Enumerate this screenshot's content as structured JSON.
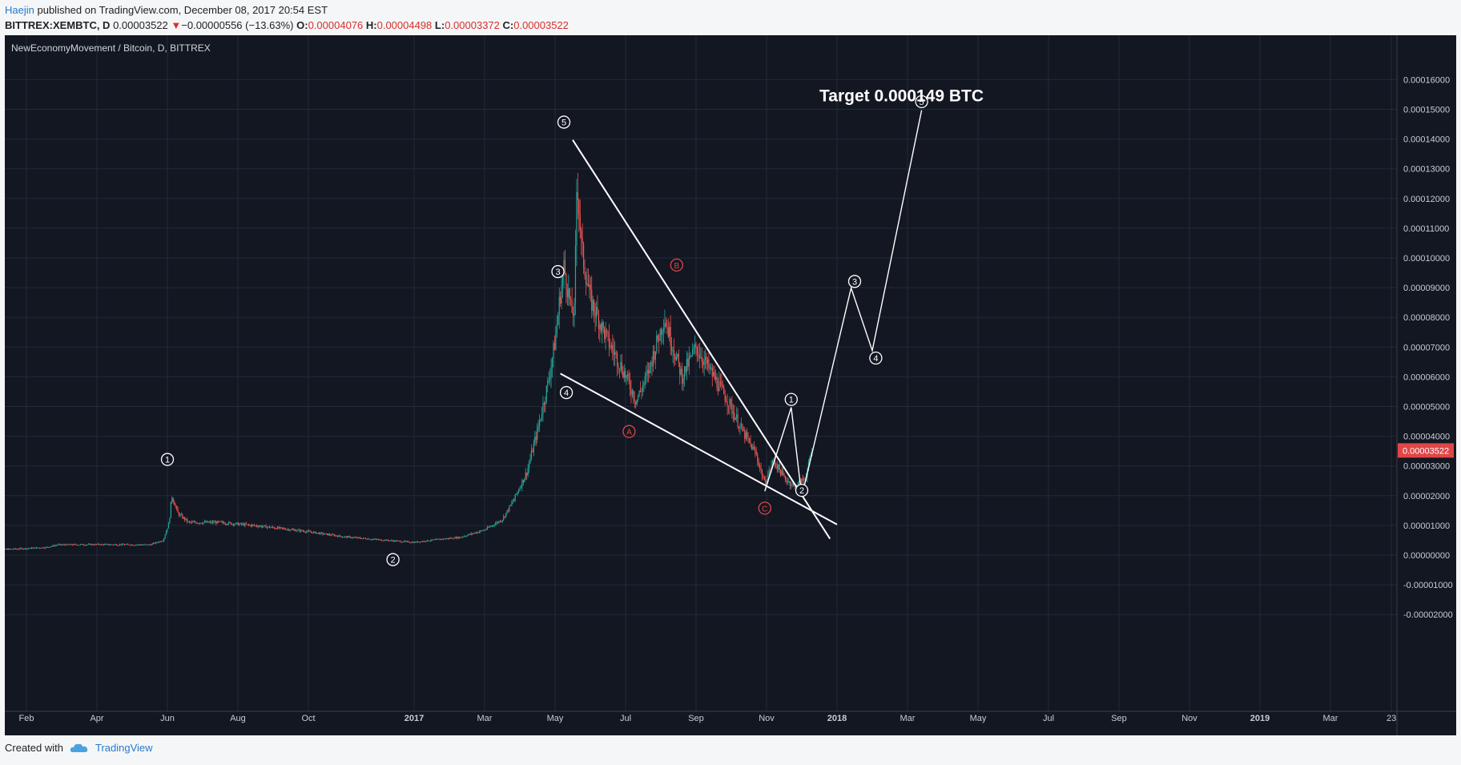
{
  "header": {
    "author": "Haejin",
    "published": "published on TradingView.com, December 08, 2017 20:54 EST",
    "symbol": "BITTREX:XEMBTC, D",
    "last": "0.00003522",
    "arrow": "▼",
    "change": "−0.00000556 (−13.63%)",
    "o_label": "O:",
    "o": "0.00004076",
    "h_label": "H:",
    "h": "0.00004498",
    "l_label": "L:",
    "l": "0.00003372",
    "c_label": "C:",
    "c": "0.00003522"
  },
  "footer": {
    "created_with": "Created with",
    "brand": "TradingView",
    "logo_icon": "tradingview-cloud-icon"
  },
  "colors": {
    "background": "#131722",
    "up": "#26a69a",
    "down": "#ef5350",
    "annotation": "#ffffff",
    "abc": "#e04646",
    "price_tag": "#e04646"
  },
  "chart_data": {
    "type": "candlestick",
    "title": "NewEconomyMovement / Bitcoin, D, BITTREX",
    "ylim": [
      -3e-05,
      0.000165
    ],
    "y_ticks": [
      "0.00016000",
      "0.00015000",
      "0.00014000",
      "0.00013000",
      "0.00012000",
      "0.00011000",
      "0.00010000",
      "0.00009000",
      "0.00008000",
      "0.00007000",
      "0.00006000",
      "0.00005000",
      "0.00004000",
      "0.00003000",
      "0.00002000",
      "0.00001000",
      "0.00000000",
      "-0.00001000",
      "-0.00002000"
    ],
    "x_ticks": [
      "Feb",
      "Apr",
      "Jun",
      "Aug",
      "Oct",
      "2017",
      "Mar",
      "May",
      "Jul",
      "Sep",
      "Nov",
      "2018",
      "Mar",
      "May",
      "Jul",
      "Sep",
      "Nov",
      "2019",
      "Mar",
      "23"
    ],
    "x_tick_months": [
      1,
      3,
      5,
      7,
      9,
      12,
      14,
      16,
      18,
      20,
      22,
      24,
      26,
      28,
      30,
      32,
      34,
      36,
      38,
      39.73
    ],
    "price_tag": "0.00003522",
    "price_path": [
      [
        0,
        1.8e-06
      ],
      [
        0.9,
        2.2e-06
      ],
      [
        1.55,
        2.6e-06
      ],
      [
        1.9,
        3.5e-06
      ],
      [
        3,
        3.6e-06
      ],
      [
        4.5,
        3.5e-06
      ],
      [
        4.88,
        5e-06
      ],
      [
        5.05,
        1.1e-05
      ],
      [
        5.12,
        2e-05
      ],
      [
        5.3,
        1.4e-05
      ],
      [
        5.6,
        1.1e-05
      ],
      [
        6.5,
        1.1e-05
      ],
      [
        7.6,
        9.8e-06
      ],
      [
        8.8,
        8.2e-06
      ],
      [
        10,
        6.2e-06
      ],
      [
        11,
        5.2e-06
      ],
      [
        12,
        4.3e-06
      ],
      [
        12.6,
        5.2e-06
      ],
      [
        13.3,
        6e-06
      ],
      [
        14,
        8.5e-06
      ],
      [
        14.5,
        1.2e-05
      ],
      [
        14.8,
        1.8e-05
      ],
      [
        15.2,
        2.8e-05
      ],
      [
        15.5,
        4.2e-05
      ],
      [
        15.8,
        5.8e-05
      ],
      [
        16,
        7.2e-05
      ],
      [
        16.15,
        8.8e-05
      ],
      [
        16.25,
        9.7e-05
      ],
      [
        16.4,
        8.7e-05
      ],
      [
        16.45,
        8.2e-05
      ],
      [
        16.55,
        8.2e-05
      ],
      [
        16.62,
        0.000128
      ],
      [
        16.75,
        0.000103
      ],
      [
        17,
        8.6e-05
      ],
      [
        17.5,
        7.2e-05
      ],
      [
        17.9,
        6.3e-05
      ],
      [
        18.3,
        5.2e-05
      ],
      [
        18.6,
        6e-05
      ],
      [
        19.1,
        8e-05
      ],
      [
        19.3,
        7.2e-05
      ],
      [
        19.6,
        6e-05
      ],
      [
        20.0,
        7e-05
      ],
      [
        20.5,
        6e-05
      ],
      [
        20.9,
        5.2e-05
      ],
      [
        21.3,
        4.2e-05
      ],
      [
        21.7,
        3.4e-05
      ],
      [
        21.95,
        2.4e-05
      ],
      [
        22.2,
        3.2e-05
      ],
      [
        22.5,
        2.6e-05
      ],
      [
        22.8,
        2.3e-05
      ],
      [
        23.1,
        2.6e-05
      ],
      [
        23.3,
        3.522e-05
      ]
    ],
    "annotations": {
      "impulse_labels": [
        {
          "label": "1",
          "x": 5.0,
          "y": 3.22e-05
        },
        {
          "label": "2",
          "x": 11.4,
          "y": -1.5e-06
        },
        {
          "label": "3",
          "x": 16.08,
          "y": 9.54e-05
        },
        {
          "label": "4",
          "x": 16.32,
          "y": 5.47e-05
        },
        {
          "label": "5",
          "x": 16.25,
          "y": 0.0001457
        },
        {
          "label": "1",
          "x": 22.7,
          "y": 5.24e-05
        },
        {
          "label": "2",
          "x": 23.0,
          "y": 2.18e-05
        },
        {
          "label": "3",
          "x": 24.5,
          "y": 9.21e-05
        },
        {
          "label": "4",
          "x": 25.1,
          "y": 6.63e-05
        },
        {
          "label": "5",
          "x": 26.4,
          "y": 0.0001526
        }
      ],
      "correction_labels": [
        {
          "label": "A",
          "x": 18.1,
          "y": 4.16e-05
        },
        {
          "label": "B",
          "x": 19.45,
          "y": 9.76e-05
        },
        {
          "label": "C",
          "x": 21.95,
          "y": 1.58e-05
        }
      ],
      "trendlines": [
        [
          [
            16.5,
            0.0001397
          ],
          [
            23.8,
            5.5e-06
          ]
        ],
        [
          [
            16.15,
            6.11e-05
          ],
          [
            24.0,
            1.03e-05
          ]
        ]
      ],
      "projection": [
        [
          21.95,
          2.15e-05
        ],
        [
          22.7,
          4.97e-05
        ],
        [
          23.0,
          1.97e-05
        ],
        [
          24.4,
          8.99e-05
        ],
        [
          25.0,
          6.88e-05
        ],
        [
          26.4,
          0.0001497
        ]
      ],
      "target_text": "Target 0.000149 BTC"
    }
  }
}
